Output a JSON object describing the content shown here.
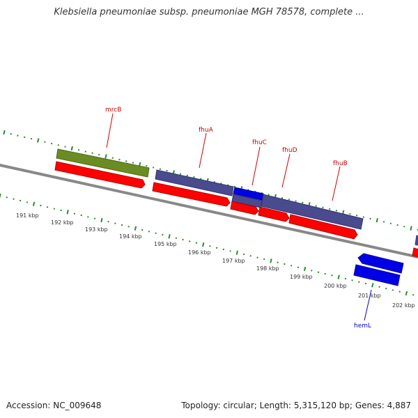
{
  "title": "Klebsiella pneumoniae subsp. pneumoniae MGH 78578, complete ...",
  "footer": {
    "accession": "Accession: NC_009648",
    "summary": "Topology: circular; Length: 5,315,120 bp; Genes: 4,887"
  },
  "colors": {
    "backbone": "#888888",
    "ticks": "#2a8a2a",
    "cds": "#ff0000",
    "gene_olive": "#6b8c23",
    "gene_slate": "#4a4a8f",
    "gene_blue": "#0000e6",
    "label_red": "#cc0000",
    "label_blue": "#0000cc"
  },
  "scale": {
    "unit": "kbp",
    "labels": [
      "191 kbp",
      "192 kbp",
      "193 kbp",
      "194 kbp",
      "195 kbp",
      "196 kbp",
      "197 kbp",
      "198 kbp",
      "199 kbp",
      "200 kbp",
      "201 kbp",
      "202 kbp"
    ]
  },
  "features": [
    {
      "name": "mrcB",
      "label_color": "label_red",
      "track_color": "gene_olive"
    },
    {
      "name": "fhuA",
      "label_color": "label_red",
      "track_color": "gene_slate"
    },
    {
      "name": "fhuC",
      "label_color": "label_red",
      "track_color": "gene_blue"
    },
    {
      "name": "fhuD",
      "label_color": "label_red",
      "track_color": "gene_slate"
    },
    {
      "name": "fhuB",
      "label_color": "label_red",
      "track_color": "gene_slate"
    },
    {
      "name": "hemL",
      "label_color": "label_blue",
      "track_color": "gene_blue"
    }
  ]
}
